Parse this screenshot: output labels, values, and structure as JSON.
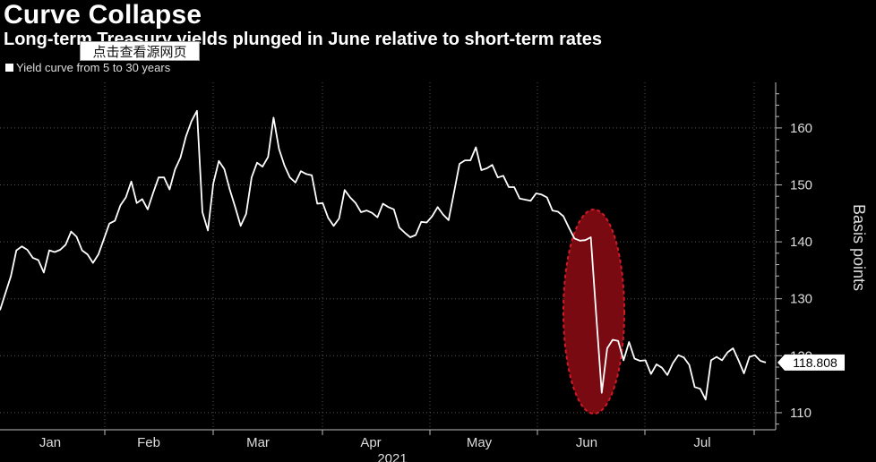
{
  "chart_data": {
    "type": "line",
    "title": "Curve Collapse",
    "subtitle": "Long-term Treasury yields plunged in June relative to short-term rates",
    "legend": "Yield curve from 5 to 30 years",
    "ylabel": "Basis points",
    "xlabel": "2021",
    "ylim": [
      107,
      168
    ],
    "yticks": [
      110,
      120,
      130,
      140,
      150,
      160
    ],
    "xticks": [
      "Jan",
      "Feb",
      "Mar",
      "Apr",
      "May",
      "Jun",
      "Jul"
    ],
    "last_value_label": "118.808",
    "highlight": "June plunge",
    "series": [
      {
        "values": [
          128,
          131,
          134,
          138.5,
          139.2,
          138.6,
          137.2,
          136.8,
          134.6,
          138.5,
          138.2,
          138.6,
          139.5,
          141.8,
          140.9,
          138.5,
          137.8,
          136.3,
          137.8,
          140.5,
          143.2,
          143.7,
          146.4,
          147.8,
          150.6,
          146.8,
          147.5,
          145.7,
          148.6,
          151.3,
          151.3,
          149.2,
          152.7,
          154.8,
          158.5,
          161.2,
          163,
          145.2,
          142,
          150.3,
          154.2,
          152.8,
          149.2,
          146.1,
          142.8,
          144.9,
          151.3,
          153.9,
          153.2,
          154.9,
          161.8,
          156.3,
          153.4,
          151.3,
          150.4,
          152.4,
          151.9,
          151.7,
          146.7,
          146.8,
          144.2,
          142.8,
          144.1,
          149.1,
          147.8,
          146.8,
          145.2,
          145.5,
          145.1,
          144.3,
          146.7,
          146.1,
          145.7,
          142.5,
          141.6,
          140.8,
          141.2,
          143.5,
          143.4,
          144.5,
          146.1,
          144.8,
          143.8,
          148.7,
          153.7,
          154.3,
          154.3,
          156.6,
          152.6,
          152.9,
          153.5,
          151.3,
          151.6,
          149.6,
          149.6,
          147.6,
          147.4,
          147.2,
          148.5,
          148.3,
          147.8,
          145.5,
          145.3,
          144.5,
          142.5,
          140.6,
          140.2,
          140.3,
          140.8,
          127,
          113.5,
          121.3,
          122.8,
          122.6,
          119.2,
          122.4,
          119.5,
          119.1,
          119.2,
          116.8,
          118.5,
          117.9,
          116.6,
          118.7,
          120.1,
          119.7,
          118.4,
          114.5,
          114.2,
          112.3,
          119.2,
          119.8,
          119.2,
          120.6,
          121.3,
          119.2,
          116.9,
          119.8,
          120.1,
          119.1,
          118.808
        ]
      }
    ]
  },
  "overlay": {
    "label": "点击查看源网页"
  }
}
